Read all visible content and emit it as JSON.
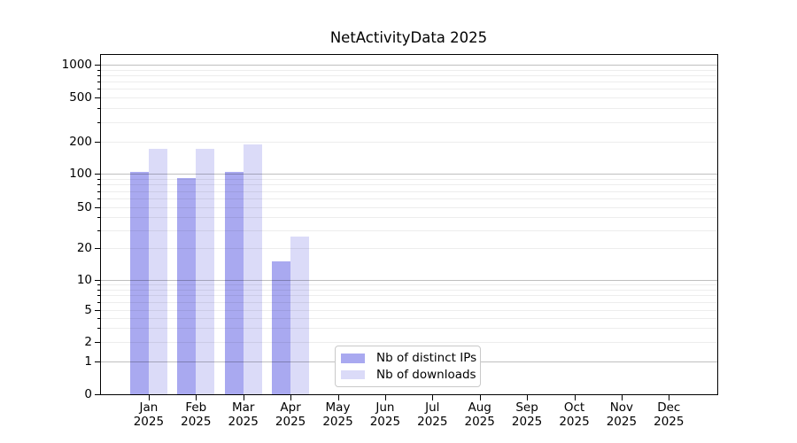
{
  "title": "NetActivityData 2025",
  "chart_data": {
    "type": "bar",
    "title": "NetActivityData 2025",
    "categories": [
      "Jan",
      "Feb",
      "Mar",
      "Apr",
      "May",
      "Jun",
      "Jul",
      "Aug",
      "Sep",
      "Oct",
      "Nov",
      "Dec"
    ],
    "category_year": "2025",
    "series": [
      {
        "name": "Nb of distinct IPs",
        "color": "#a9a9f0",
        "values": [
          104,
          92,
          104,
          15,
          0,
          0,
          0,
          0,
          0,
          0,
          0,
          0
        ]
      },
      {
        "name": "Nb of downloads",
        "color": "#dbdbf8",
        "values": [
          170,
          170,
          190,
          26,
          0,
          0,
          0,
          0,
          0,
          0,
          0,
          0
        ]
      }
    ],
    "yscale": "symlog",
    "yticks": [
      0,
      1,
      2,
      5,
      10,
      20,
      50,
      100,
      200,
      500,
      1000
    ],
    "ylim": [
      0,
      1000
    ],
    "grid": true,
    "legend_position": "lower center"
  }
}
